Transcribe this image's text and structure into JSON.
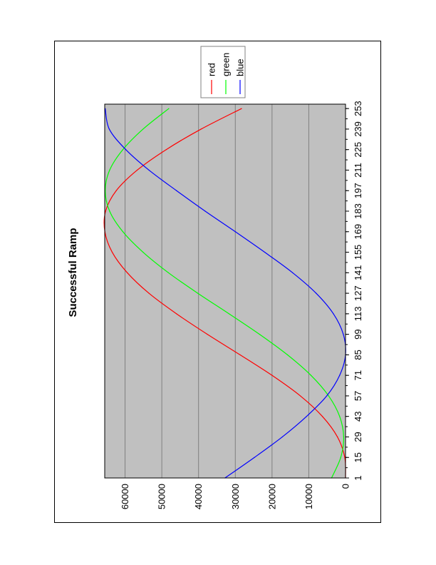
{
  "chart_data": {
    "type": "line",
    "title": "Successful Ramp",
    "orientation": "rotated-90",
    "x_tick_labels": [
      "1",
      "15",
      "29",
      "43",
      "57",
      "71",
      "85",
      "99",
      "113",
      "127",
      "141",
      "155",
      "169",
      "183",
      "197",
      "211",
      "225",
      "239",
      "253"
    ],
    "x_range": [
      1,
      256
    ],
    "y_tick_labels": [
      "0",
      "10000",
      "20000",
      "30000",
      "40000",
      "50000",
      "60000"
    ],
    "y_range": [
      0,
      65535
    ],
    "grid": true,
    "legend_position": "top-right",
    "colors": {
      "plot_bg": "#c0c0c0",
      "grid": "#808080"
    },
    "series": [
      {
        "name": "red",
        "color": "#ff0000",
        "x": [
          1,
          15,
          29,
          43,
          57,
          71,
          85,
          99,
          113,
          127,
          141,
          155,
          169,
          183,
          197,
          211,
          225,
          239,
          253
        ],
        "values": [
          0,
          200,
          2200,
          6300,
          12300,
          20000,
          28700,
          37600,
          46000,
          53500,
          59400,
          63500,
          65500,
          65300,
          62400,
          56700,
          48800,
          39300,
          28300
        ]
      },
      {
        "name": "green",
        "color": "#00ff00",
        "x": [
          1,
          15,
          29,
          43,
          57,
          71,
          85,
          99,
          113,
          127,
          141,
          155,
          169,
          183,
          197,
          211,
          225,
          239,
          253
        ],
        "values": [
          3800,
          1300,
          500,
          1600,
          4600,
          9400,
          15800,
          23400,
          31700,
          40200,
          48200,
          55100,
          60600,
          64200,
          65400,
          64200,
          60600,
          55100,
          48100
        ]
      },
      {
        "name": "blue",
        "color": "#0000ff",
        "x": [
          1,
          15,
          29,
          43,
          57,
          71,
          85,
          99,
          113,
          127,
          141,
          155,
          169,
          183,
          197,
          211,
          225,
          239,
          253
        ],
        "values": [
          32800,
          24800,
          17200,
          10600,
          5100,
          1600,
          0,
          600,
          3300,
          8000,
          14400,
          22000,
          30000,
          38200,
          46000,
          53500,
          59800,
          64300,
          65400
        ]
      }
    ]
  }
}
